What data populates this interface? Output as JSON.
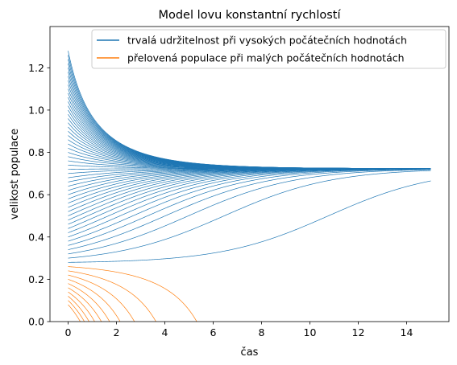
{
  "chart_data": {
    "type": "line",
    "title": "Model lovu konstantní rychlostí",
    "xlabel": "čas",
    "ylabel": "velikost populace",
    "xlim": [
      -0.75,
      15.75
    ],
    "ylim": [
      0,
      1.395
    ],
    "xticks": [
      "0",
      "2",
      "4",
      "6",
      "8",
      "10",
      "12",
      "14"
    ],
    "yticks": [
      "0.0",
      "0.2",
      "0.4",
      "0.6",
      "0.8",
      "1.0",
      "1.2"
    ],
    "grid": false,
    "legend": {
      "placement": "top-right"
    },
    "model": {
      "equilibrium_high": 0.7236,
      "equilibrium_low": 0.2764,
      "t_max": 15
    },
    "series": [
      {
        "name": "trvalá udržitelnost při vysokých počátečních hodnotách",
        "color": "#1f77b4",
        "initial_values": [
          0.28,
          0.3,
          0.32,
          0.34,
          0.36,
          0.38,
          0.4,
          0.42,
          0.44,
          0.46,
          0.48,
          0.5,
          0.52,
          0.54,
          0.56,
          0.58,
          0.6,
          0.62,
          0.64,
          0.66,
          0.68,
          0.7,
          0.72,
          0.74,
          0.76,
          0.78,
          0.8,
          0.82,
          0.84,
          0.86,
          0.88,
          0.9,
          0.92,
          0.94,
          0.96,
          0.98,
          1.0,
          1.02,
          1.04,
          1.06,
          1.08,
          1.1,
          1.12,
          1.14,
          1.16,
          1.18,
          1.2,
          1.22,
          1.24,
          1.26,
          1.28
        ]
      },
      {
        "name": "přelovená populace při malých počátečních hodnotách",
        "color": "#ff7f0e",
        "initial_values": [
          0.08,
          0.1,
          0.12,
          0.14,
          0.16,
          0.18,
          0.2,
          0.22,
          0.24,
          0.26
        ]
      }
    ]
  }
}
